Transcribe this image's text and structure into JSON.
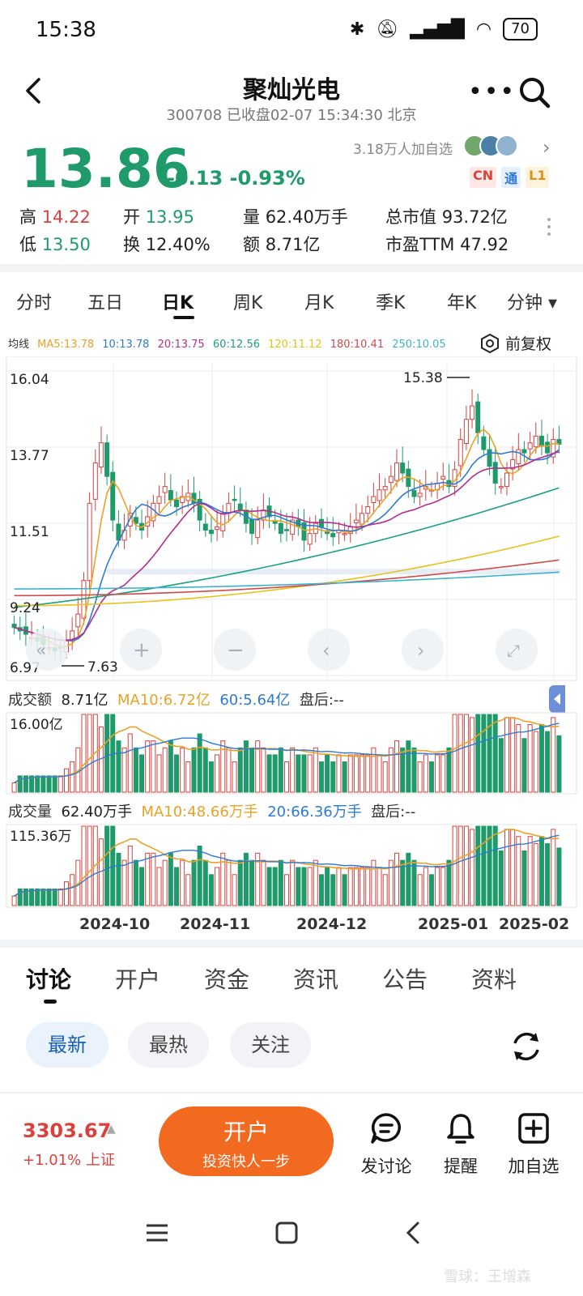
{
  "status_bar": {
    "time": "15:38",
    "battery": "70"
  },
  "header": {
    "title": "聚灿光电",
    "subtitle": "300708 已收盘02-07 15:34:30 北京"
  },
  "quote": {
    "price": "13.86",
    "change": "-0.13 -0.93%",
    "watchers": "3.18万人加自选",
    "badges": [
      "CN",
      "通",
      "L1"
    ],
    "high_label": "高",
    "high": "14.22",
    "low_label": "低",
    "low": "13.50",
    "open_label": "开",
    "open": "13.95",
    "turnover_label": "换",
    "turnover": "12.40%",
    "volume_label": "量",
    "volume": "62.40万手",
    "amount_label": "额",
    "amount": "8.71亿",
    "mktcap_label": "总市值",
    "mktcap": "93.72亿",
    "pe_label": "市盈TTM",
    "pe": "47.92"
  },
  "chart_tabs": [
    "分时",
    "五日",
    "日K",
    "周K",
    "月K",
    "季K",
    "年K",
    "分钟 ▾"
  ],
  "ma_legend": {
    "label": "均线",
    "ma5": "MA5:13.78",
    "ma10": "10:13.78",
    "ma20": "20:13.75",
    "ma60": "60:12.56",
    "ma120": "120:11.12",
    "ma180": "180:10.41",
    "ma250": "250:10.05"
  },
  "fuquan": "前复权",
  "price_axis": [
    "16.04",
    "13.77",
    "11.51",
    "9.24",
    "6.97"
  ],
  "annotations": {
    "high": "15.38",
    "low": "7.63"
  },
  "amount_legend": {
    "label": "成交额",
    "value": "8.71亿",
    "ma10": "MA10:6.72亿",
    "ma60": "60:5.64亿",
    "after": "盘后:--",
    "axis_max": "16.00亿"
  },
  "volume_legend": {
    "label": "成交量",
    "value": "62.40万手",
    "ma10": "MA10:48.66万手",
    "ma20": "20:66.36万手",
    "after": "盘后:--",
    "axis_max": "115.36万"
  },
  "date_axis": [
    "2024-10",
    "2024-11",
    "2024-12",
    "2025-01",
    "2025-02"
  ],
  "discussion_tabs": [
    "讨论",
    "开户",
    "资金",
    "资讯",
    "公告",
    "资料"
  ],
  "filters": [
    "最新",
    "最热",
    "关注"
  ],
  "bottom": {
    "index_price": "3303.67",
    "index_change": "+1.01% 上证",
    "open_title": "开户",
    "open_sub": "投资快人一步",
    "actions": [
      "发讨论",
      "提醒",
      "加自选"
    ]
  },
  "watermark": "雪球：王增森",
  "colors": {
    "up": "#d9413d",
    "down": "#1f9a6a",
    "ma5": "#e9a227",
    "ma10": "#2c7ad6",
    "ma20": "#b02f8f",
    "ma60": "#1aa085",
    "ma120": "#e6c21b",
    "ma180": "#d14a4a",
    "ma250": "#3bb3c9",
    "accent_orange": "#f26a1f"
  },
  "chart_data": {
    "type": "candlestick",
    "y_axis_range": [
      6.97,
      16.04
    ],
    "x_axis_labels": [
      "2024-10",
      "2024-11",
      "2024-12",
      "2025-01",
      "2025-02"
    ],
    "last_close": 13.86,
    "period_high": 15.38,
    "period_low": 7.63,
    "moving_averages": {
      "MA5": 13.78,
      "MA10": 13.78,
      "MA20": 13.75,
      "MA60": 12.56,
      "MA120": 11.12,
      "MA180": 10.41,
      "MA250": 10.05
    },
    "approx_close_series": [
      8.4,
      8.3,
      8.2,
      8.1,
      8.0,
      7.9,
      7.8,
      7.7,
      7.8,
      8.0,
      8.3,
      8.8,
      9.8,
      12.1,
      13.3,
      13.9,
      12.9,
      11.6,
      11.0,
      11.3,
      11.8,
      11.5,
      11.3,
      11.7,
      12.1,
      12.3,
      12.6,
      12.2,
      12.0,
      12.3,
      12.4,
      12.1,
      11.6,
      11.3,
      11.2,
      11.4,
      11.8,
      12.1,
      12.2,
      11.9,
      11.5,
      11.2,
      11.6,
      11.9,
      11.7,
      11.5,
      11.2,
      11.3,
      11.6,
      11.4,
      11.0,
      11.2,
      11.5,
      11.4,
      11.2,
      11.1,
      11.3,
      11.2,
      11.4,
      11.6,
      11.8,
      12.0,
      12.3,
      12.5,
      12.6,
      12.9,
      13.3,
      13.0,
      12.6,
      12.3,
      12.4,
      12.6,
      12.5,
      12.7,
      12.9,
      12.6,
      13.1,
      14.0,
      14.6,
      15.0,
      14.2,
      13.7,
      13.2,
      12.7,
      12.6,
      13.0,
      13.4,
      13.7,
      13.6,
      13.9,
      14.1,
      13.8,
      13.6,
      14.0,
      13.86
    ],
    "amount_axis_max": "16.00亿",
    "amount_latest": "8.71亿",
    "amount_ma10": "6.72亿",
    "amount_ma60": "5.64亿",
    "volume_axis_max": "115.36万",
    "volume_latest": "62.40万手",
    "volume_ma10": "48.66万手",
    "volume_ma20": "66.36万手"
  }
}
